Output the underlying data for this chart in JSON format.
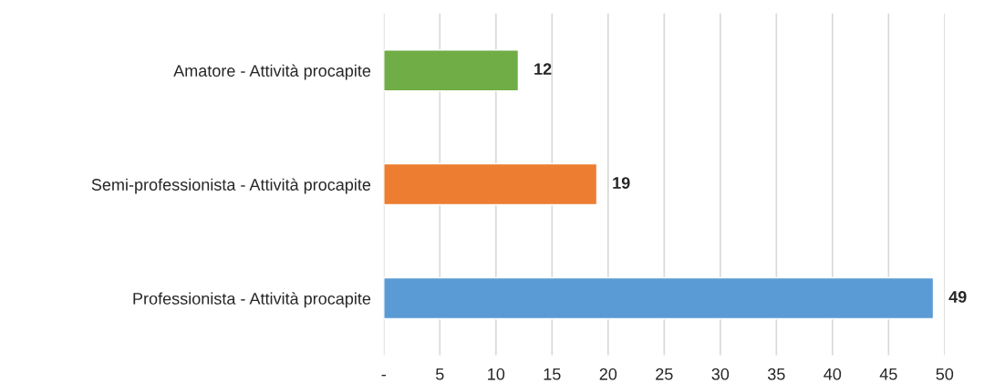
{
  "chart_data": {
    "type": "bar",
    "orientation": "horizontal",
    "categories": [
      "Amatore - Attività procapite",
      "Semi-professionista - Attività procapite",
      "Professionista - Attività procapite"
    ],
    "values": [
      12,
      19,
      49
    ],
    "colors": [
      "#70ad47",
      "#ed7d31",
      "#5b9bd5"
    ],
    "xlim": [
      0,
      50
    ],
    "xticks": [
      {
        "value": 0,
        "label": "-"
      },
      5,
      10,
      15,
      20,
      25,
      30,
      35,
      40,
      45,
      50
    ],
    "grid": "x",
    "data_labels": true
  }
}
